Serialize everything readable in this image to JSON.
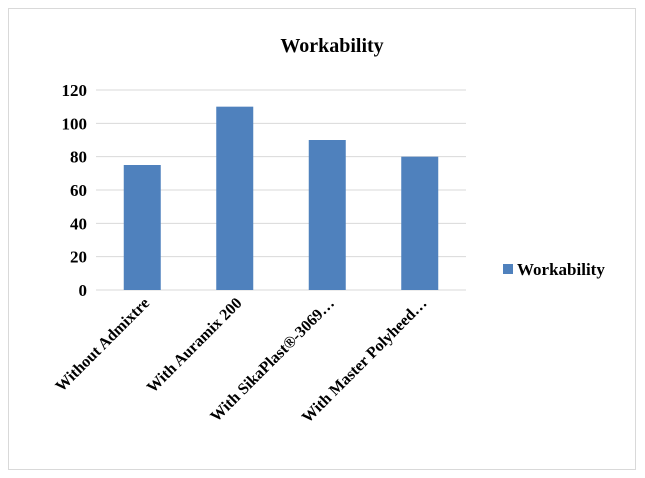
{
  "chart_data": {
    "type": "bar",
    "title": "Workability",
    "xlabel": "",
    "ylabel": "",
    "categories": [
      "Without Admixtre",
      "With Auramix 200",
      "With SikaPlast®-3069…",
      "With Master Polyheed…"
    ],
    "series": [
      {
        "name": "Workability",
        "values": [
          75,
          110,
          90,
          80
        ]
      }
    ],
    "yticks": [
      "0",
      "20",
      "40",
      "60",
      "80",
      "100",
      "120"
    ],
    "ylim": [
      0,
      120
    ],
    "grid": true,
    "legend_position": "right",
    "colors": {
      "bar": "#4f81bd",
      "grid": "#d9d9d9",
      "border": "#d9d9d9"
    }
  }
}
